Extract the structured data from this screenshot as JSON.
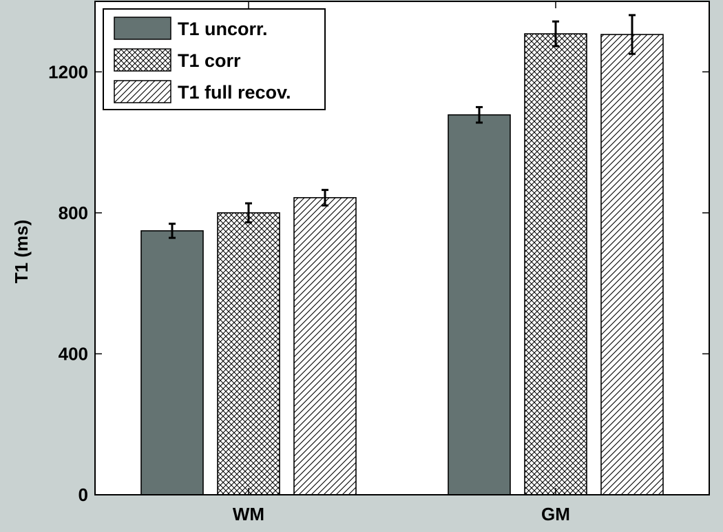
{
  "chart_data": {
    "type": "bar",
    "title": "",
    "xlabel": "",
    "ylabel": "T1 (ms)",
    "ylim": [
      0,
      1400
    ],
    "yticks": [
      0,
      400,
      800,
      1200
    ],
    "grid": false,
    "legend_position": "top-left",
    "categories": [
      "WM",
      "GM"
    ],
    "series": [
      {
        "name": "T1 uncorr.",
        "values": [
          749,
          1078
        ],
        "errors": [
          20,
          22
        ],
        "fill": "solid",
        "color": "#647372"
      },
      {
        "name": "T1 corr",
        "values": [
          800,
          1308
        ],
        "errors": [
          27,
          35
        ],
        "fill": "crosshatch",
        "color": "#ffffff"
      },
      {
        "name": "T1 full recov.",
        "values": [
          843,
          1306
        ],
        "errors": [
          22,
          55
        ],
        "fill": "diagonal",
        "color": "#ffffff"
      }
    ]
  }
}
